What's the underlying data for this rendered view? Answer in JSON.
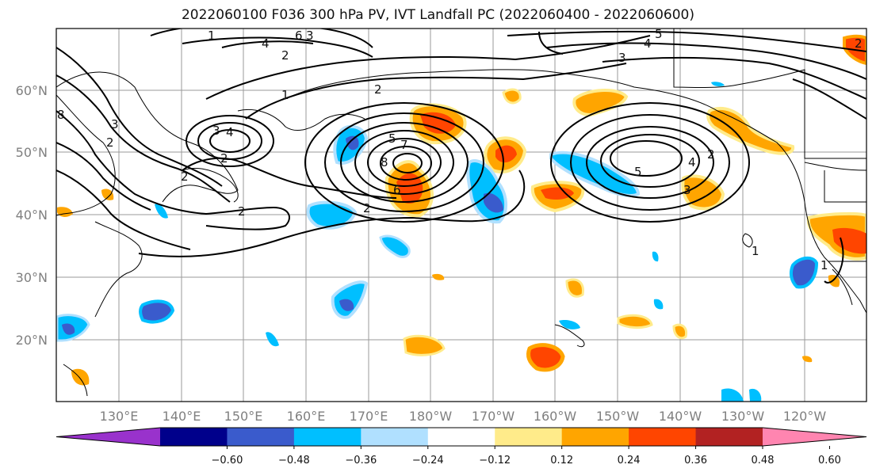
{
  "title": "2022060100 F036 300 hPa PV, IVT Landfall PC (2022060400 - 2022060600)",
  "map": {
    "lat_labels": [
      "60°N",
      "50°N",
      "40°N",
      "30°N",
      "20°N"
    ],
    "lon_labels": [
      "130°E",
      "140°E",
      "150°E",
      "160°E",
      "170°E",
      "180°W",
      "170°W",
      "160°W",
      "150°W",
      "140°W",
      "130°W",
      "120°W"
    ],
    "pv_contour_labels": [
      "1",
      "2",
      "3",
      "4",
      "5",
      "6",
      "7",
      "8"
    ],
    "colors": {
      "purple": "#9932cc",
      "navy": "#00008b",
      "royal": "#3a5bcc",
      "cyan": "#00bfff",
      "lightblue": "#b0e0ff",
      "white": "#ffffff",
      "yellow": "#ffeb8a",
      "orange": "#ffa500",
      "redorange": "#ff4500",
      "firebrick": "#b22222",
      "pink": "#ff85b0"
    }
  },
  "colorbar": {
    "tick_labels": [
      "−0.60",
      "−0.48",
      "−0.36",
      "−0.24",
      "−0.12",
      "0.12",
      "0.24",
      "0.36",
      "0.48",
      "0.60"
    ],
    "colors": [
      "#9932cc",
      "#00008b",
      "#3a5bcc",
      "#00bfff",
      "#b0e0ff",
      "#ffffff",
      "#ffeb8a",
      "#ffa500",
      "#ff4500",
      "#b22222",
      "#ff85b0"
    ]
  }
}
